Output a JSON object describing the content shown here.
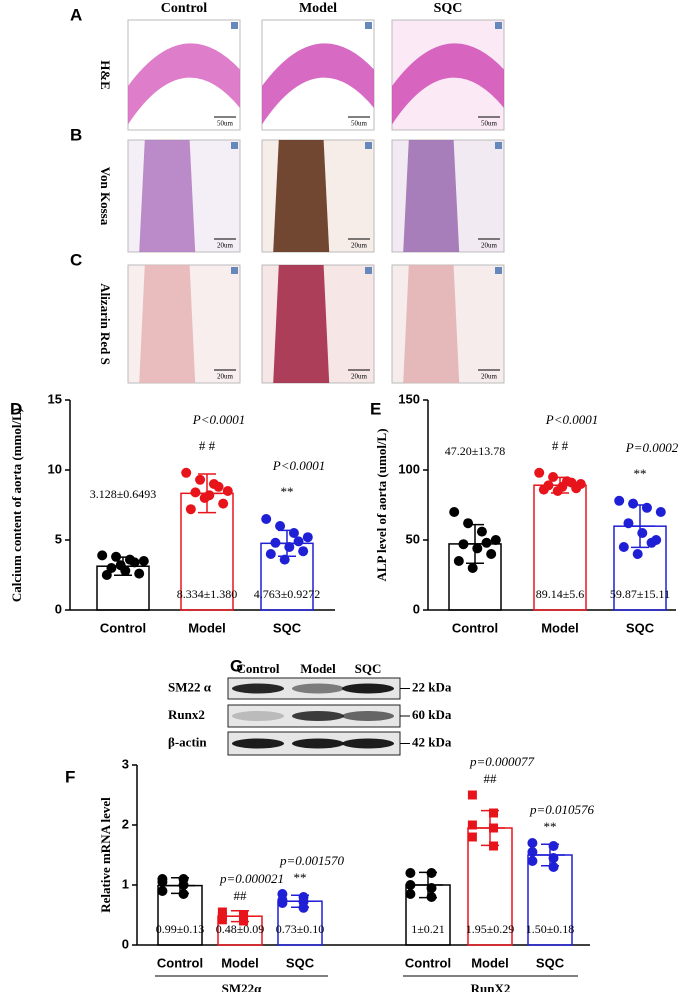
{
  "histology": {
    "panel_labels": [
      "A",
      "B",
      "C"
    ],
    "columns": [
      "Control",
      "Model",
      "SQC"
    ],
    "rows": [
      "H&E",
      "Von Kossa",
      "Alizarin Red S"
    ],
    "scale_bars": [
      "50um",
      "20um",
      "20um"
    ]
  },
  "blot": {
    "panel": "G",
    "columns": [
      "Control",
      "Model",
      "SQC"
    ],
    "proteins": [
      "SM22 α",
      "Runx2",
      "β-actin"
    ],
    "sizes": [
      "22 kDa",
      "60 kDa",
      "42 kDa"
    ]
  },
  "chart_data": [
    {
      "type": "bar",
      "panel": "D",
      "ylabel": "Calcium content of aorta (mmol/L)",
      "categories": [
        "Control",
        "Model",
        "SQC"
      ],
      "colors": [
        "#000000",
        "#e8141b",
        "#1f1fd6"
      ],
      "ylim": [
        0,
        15
      ],
      "yticks": [
        0,
        5,
        10,
        15
      ],
      "values": [
        3.128,
        8.334,
        4.763
      ],
      "errors": [
        0.6493,
        1.38,
        0.9272
      ],
      "value_labels": [
        "3.128±0.6493",
        "8.334±1.380",
        "4.763±0.9272"
      ],
      "points": [
        [
          3.9,
          3.8,
          3.6,
          3.5,
          3.0,
          2.8,
          2.6,
          2.5,
          3.2,
          3.4
        ],
        [
          9.8,
          9.3,
          9.0,
          8.5,
          8.4,
          8.2,
          7.6,
          7.2,
          8.0,
          8.8
        ],
        [
          6.5,
          6.0,
          5.5,
          5.2,
          4.8,
          4.5,
          4.2,
          4.0,
          3.6,
          4.9
        ]
      ],
      "p_labels": [
        null,
        "P<0.0001",
        "P<0.0001"
      ],
      "sig_labels": [
        null,
        "# #",
        "**"
      ]
    },
    {
      "type": "bar",
      "panel": "E",
      "ylabel": "ALP level of aorta (umol/L)",
      "categories": [
        "Control",
        "Model",
        "SQC"
      ],
      "colors": [
        "#000000",
        "#e8141b",
        "#1f1fd6"
      ],
      "ylim": [
        0,
        150
      ],
      "yticks": [
        0,
        50,
        100,
        150
      ],
      "values": [
        47.2,
        89.14,
        59.87
      ],
      "errors": [
        13.78,
        5.6,
        15.11
      ],
      "value_labels": [
        "47.20±13.78",
        "89.14±5.6",
        "59.87±15.11"
      ],
      "points": [
        [
          70,
          62,
          56,
          50,
          47,
          44,
          40,
          35,
          30,
          48
        ],
        [
          98,
          95,
          92,
          90,
          89,
          88,
          87,
          86,
          85,
          91
        ],
        [
          78,
          76,
          73,
          70,
          62,
          55,
          50,
          45,
          40,
          48
        ]
      ],
      "p_labels": [
        null,
        "P<0.0001",
        "P=0.0002"
      ],
      "sig_labels": [
        null,
        "# #",
        "**"
      ]
    },
    {
      "type": "grouped-bar",
      "panel": "F",
      "ylabel": "Relative mRNA level",
      "categories": [
        "Control",
        "Model",
        "SQC"
      ],
      "colors": [
        "#000000",
        "#e8141b",
        "#1f1fd6"
      ],
      "ylim": [
        0,
        3
      ],
      "yticks": [
        0,
        1,
        2,
        3
      ],
      "series": [
        {
          "name": "SM22α",
          "values": [
            0.99,
            0.48,
            0.73
          ],
          "errors": [
            0.13,
            0.09,
            0.1
          ],
          "value_labels": [
            "0.99±0.13",
            "0.48±0.09",
            "0.73±0.10"
          ],
          "points": [
            [
              1.1,
              1.1,
              1.05,
              1.0,
              0.9,
              0.85
            ],
            [
              0.55,
              0.5,
              0.48,
              0.45,
              0.42,
              0.4
            ],
            [
              0.85,
              0.8,
              0.75,
              0.72,
              0.7,
              0.62
            ]
          ],
          "p_labels": [
            null,
            "p=0.000021",
            "p=0.001570"
          ],
          "sig_labels": [
            null,
            "##",
            "**"
          ]
        },
        {
          "name": "RunX2",
          "values": [
            1,
            1.95,
            1.5
          ],
          "errors": [
            0.21,
            0.29,
            0.18
          ],
          "value_labels": [
            "1±0.21",
            "1.95±0.29",
            "1.50±0.18"
          ],
          "points": [
            [
              1.2,
              1.2,
              1.0,
              0.95,
              0.85,
              0.8
            ],
            [
              2.5,
              2.2,
              2.0,
              1.95,
              1.8,
              1.65
            ],
            [
              1.7,
              1.65,
              1.55,
              1.45,
              1.4,
              1.3
            ]
          ],
          "p_labels": [
            null,
            "p=0.000077",
            "p=0.010576"
          ],
          "sig_labels": [
            null,
            "##",
            "**"
          ]
        }
      ]
    }
  ]
}
